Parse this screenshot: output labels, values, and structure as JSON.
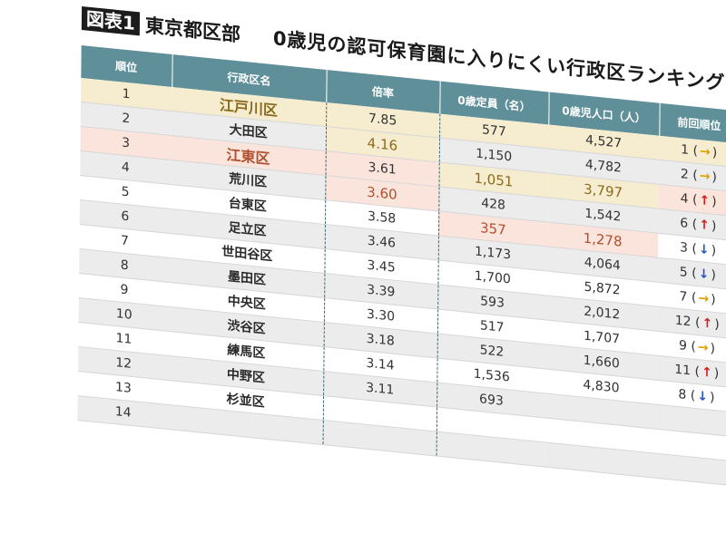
{
  "header": {
    "figure_label": "図表1",
    "area": "東京都区部",
    "title": "0歳児の認可保育園に入りにくい行政区ランキング"
  },
  "columns": [
    "順位",
    "行政区名",
    "倍率",
    "0歳定員（名）",
    "0歳児人口（人）",
    "前回順位"
  ],
  "rows": [
    {
      "rank": "1",
      "ward": "江戸川区",
      "ratio": "7.85",
      "capacity": "577",
      "population": "4,527",
      "prev": "1",
      "trend": "→",
      "trend_color": "#e0a000"
    },
    {
      "rank": "2",
      "ward": "大田区",
      "ratio": "4.16",
      "capacity": "1,150",
      "population": "4,782",
      "prev": "2",
      "trend": "→",
      "trend_color": "#e0a000"
    },
    {
      "rank": "3",
      "ward": "江東区",
      "ratio": "3.61",
      "capacity": "1,051",
      "population": "3,797",
      "prev": "4",
      "trend": "↑",
      "trend_color": "#d22020"
    },
    {
      "rank": "4",
      "ward": "荒川区",
      "ratio": "3.60",
      "capacity": "428",
      "population": "1,542",
      "prev": "6",
      "trend": "↑",
      "trend_color": "#d22020"
    },
    {
      "rank": "5",
      "ward": "台東区",
      "ratio": "3.58",
      "capacity": "357",
      "population": "1,278",
      "prev": "3",
      "trend": "↓",
      "trend_color": "#2456c8"
    },
    {
      "rank": "6",
      "ward": "足立区",
      "ratio": "3.46",
      "capacity": "1,173",
      "population": "4,064",
      "prev": "5",
      "trend": "↓",
      "trend_color": "#2456c8"
    },
    {
      "rank": "7",
      "ward": "世田谷区",
      "ratio": "3.45",
      "capacity": "1,700",
      "population": "5,872",
      "prev": "7",
      "trend": "→",
      "trend_color": "#e0a000"
    },
    {
      "rank": "8",
      "ward": "墨田区",
      "ratio": "3.39",
      "capacity": "593",
      "population": "2,012",
      "prev": "12",
      "trend": "↑",
      "trend_color": "#d22020"
    },
    {
      "rank": "9",
      "ward": "中央区",
      "ratio": "3.30",
      "capacity": "517",
      "population": "1,707",
      "prev": "9",
      "trend": "→",
      "trend_color": "#e0a000"
    },
    {
      "rank": "10",
      "ward": "渋谷区",
      "ratio": "3.18",
      "capacity": "522",
      "population": "1,660",
      "prev": "11",
      "trend": "↑",
      "trend_color": "#d22020"
    },
    {
      "rank": "11",
      "ward": "練馬区",
      "ratio": "3.14",
      "capacity": "1,536",
      "population": "4,830",
      "prev": "8",
      "trend": "↓",
      "trend_color": "#2456c8"
    },
    {
      "rank": "12",
      "ward": "中野区",
      "ratio": "3.11",
      "capacity": "693",
      "population": "",
      "prev": "",
      "trend": "",
      "trend_color": "#333333"
    },
    {
      "rank": "13",
      "ward": "杉並区",
      "ratio": "",
      "capacity": "",
      "population": "",
      "prev": "",
      "trend": "",
      "trend_color": "#333333"
    },
    {
      "rank": "14",
      "ward": "",
      "ratio": "",
      "capacity": "",
      "population": "",
      "prev": "",
      "trend": "",
      "trend_color": "#333333"
    }
  ]
}
